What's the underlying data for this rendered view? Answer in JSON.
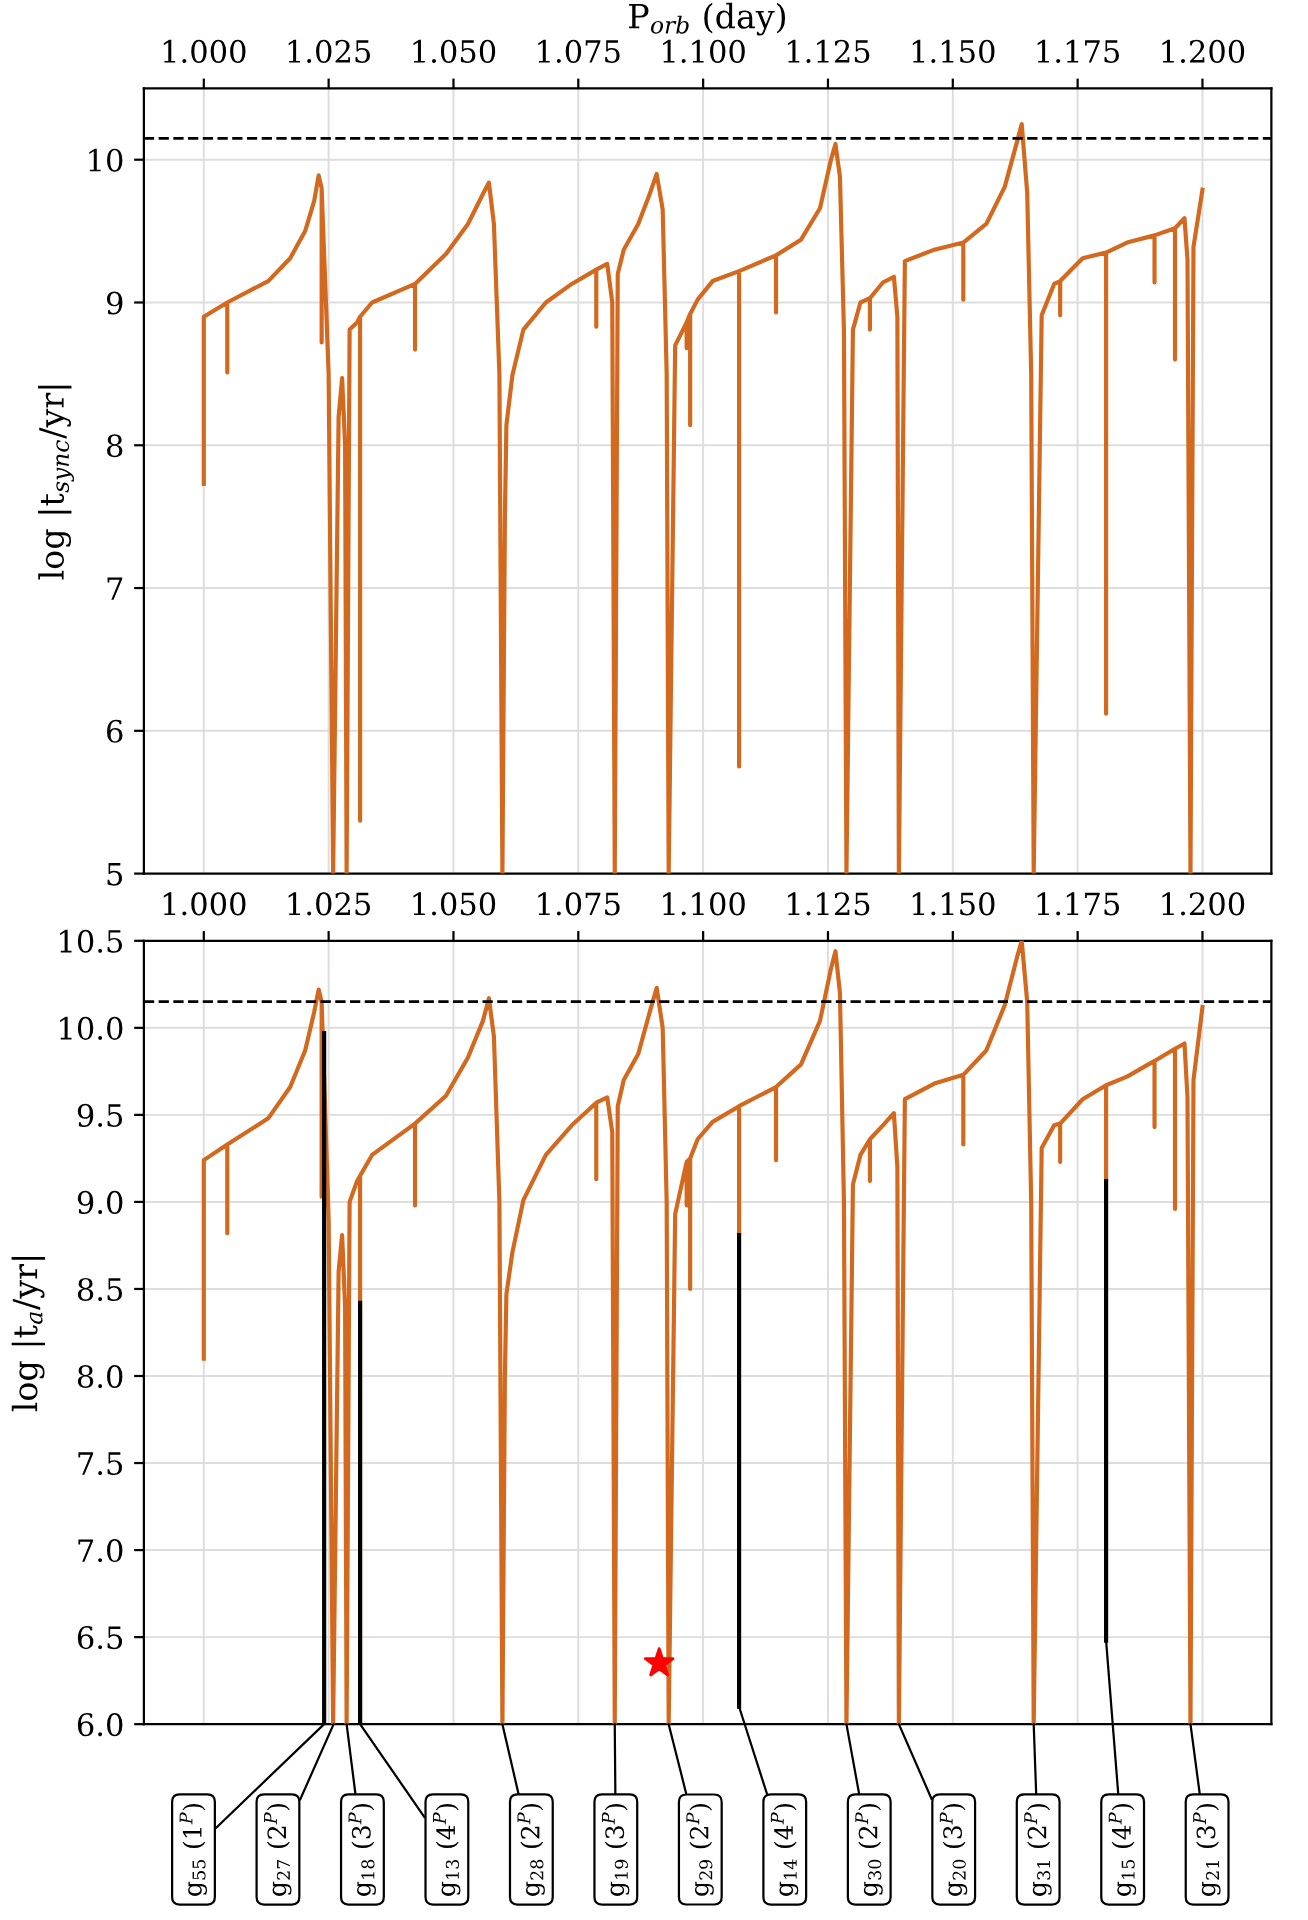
{
  "chart_data": [
    {
      "type": "line",
      "xlabel": "P$_{orb}$ (day)",
      "ylabel": "log |t$_{sync}$/yr|",
      "xlim": [
        0.988,
        1.2138
      ],
      "ylim": [
        5,
        10.5
      ],
      "xticks": [
        {
          "value": 1.0,
          "label": "1.000"
        },
        {
          "value": 1.025,
          "label": "1.025"
        },
        {
          "value": 1.05,
          "label": "1.050"
        },
        {
          "value": 1.075,
          "label": "1.075"
        },
        {
          "value": 1.1,
          "label": "1.100"
        },
        {
          "value": 1.125,
          "label": "1.125"
        },
        {
          "value": 1.15,
          "label": "1.150"
        },
        {
          "value": 1.175,
          "label": "1.175"
        },
        {
          "value": 1.2,
          "label": "1.200"
        }
      ],
      "yticks": [
        5,
        6,
        7,
        8,
        9,
        10
      ],
      "grid": true,
      "ref_lines": [
        {
          "axis": "y",
          "value": 10.15,
          "color": "#000000",
          "line_style": "dashed"
        }
      ],
      "series": [
        {
          "color": "#d2691e",
          "x": [
            1.0,
            1.0,
            1.0047,
            1.0047,
            1.0047,
            1.0129,
            1.0173,
            1.0203,
            1.0221,
            1.023,
            1.0236,
            1.0236,
            1.0236,
            1.025,
            1.0259,
            1.027,
            1.0277,
            1.0283,
            1.0286,
            1.0292,
            1.0307,
            1.0313,
            1.0313,
            1.0313,
            1.0337,
            1.0423,
            1.0423,
            1.0423,
            1.0485,
            1.0529,
            1.0559,
            1.0571,
            1.0581,
            1.0592,
            1.0598,
            1.0603,
            1.0606,
            1.0618,
            1.064,
            1.0685,
            1.0737,
            1.0786,
            1.0786,
            1.0786,
            1.0808,
            1.0818,
            1.0823,
            1.0829,
            1.0841,
            1.087,
            1.0893,
            1.0907,
            1.0919,
            1.0927,
            1.0931,
            1.0944,
            1.0967,
            1.0967,
            1.0967,
            1.0974,
            1.0974,
            1.0974,
            1.0989,
            1.1019,
            1.1072,
            1.1072,
            1.1072,
            1.1146,
            1.1146,
            1.1146,
            1.1196,
            1.1234,
            1.1256,
            1.1265,
            1.1274,
            1.1282,
            1.1287,
            1.13,
            1.1315,
            1.1334,
            1.1334,
            1.1334,
            1.136,
            1.1382,
            1.1389,
            1.1392,
            1.1404,
            1.1463,
            1.1521,
            1.1521,
            1.1521,
            1.1567,
            1.1604,
            1.1629,
            1.1638,
            1.1649,
            1.1657,
            1.1662,
            1.1678,
            1.1703,
            1.1715,
            1.1715,
            1.1715,
            1.176,
            1.1807,
            1.1807,
            1.1807,
            1.1849,
            1.1904,
            1.1904,
            1.1904,
            1.1945,
            1.1945,
            1.1945,
            1.1964,
            1.197,
            1.1976,
            1.1982,
            1.2
          ],
          "values": [
            7.73,
            8.9,
            9.0,
            8.51,
            9.0,
            9.15,
            9.31,
            9.5,
            9.71,
            9.89,
            9.8,
            8.72,
            9.8,
            8.5,
            5,
            8.2,
            8.47,
            8.0,
            5,
            8.81,
            8.86,
            8.9,
            5.37,
            8.9,
            9.0,
            9.13,
            8.67,
            9.13,
            9.34,
            9.55,
            9.76,
            9.84,
            9.55,
            8.5,
            5,
            7.5,
            8.14,
            8.49,
            8.81,
            9.0,
            9.13,
            9.23,
            8.83,
            9.23,
            9.27,
            9.0,
            5,
            9.2,
            9.37,
            9.55,
            9.76,
            9.9,
            9.65,
            8.5,
            5,
            8.7,
            8.86,
            8.68,
            8.86,
            8.92,
            8.14,
            8.92,
            9.02,
            9.15,
            9.22,
            5.75,
            9.22,
            9.33,
            8.93,
            9.33,
            9.44,
            9.66,
            10.0,
            10.11,
            9.88,
            8.8,
            5,
            8.81,
            9.0,
            9.03,
            8.81,
            9.03,
            9.14,
            9.18,
            8.9,
            5,
            9.29,
            9.37,
            9.42,
            9.02,
            9.42,
            9.55,
            9.81,
            10.13,
            10.25,
            9.77,
            8.5,
            5,
            8.91,
            9.13,
            9.15,
            8.91,
            9.15,
            9.31,
            9.35,
            6.12,
            9.35,
            9.42,
            9.47,
            9.14,
            9.47,
            9.52,
            8.6,
            9.52,
            9.59,
            9.3,
            5,
            9.39,
            9.79
          ]
        }
      ]
    },
    {
      "type": "line",
      "ylabel": "log |t$_{a}$/yr|",
      "xlim": [
        0.988,
        1.2138
      ],
      "ylim": [
        6,
        10.5
      ],
      "xticks": [
        {
          "value": 1.0,
          "label": "1.000"
        },
        {
          "value": 1.025,
          "label": "1.025"
        },
        {
          "value": 1.05,
          "label": "1.050"
        },
        {
          "value": 1.075,
          "label": "1.075"
        },
        {
          "value": 1.1,
          "label": "1.100"
        },
        {
          "value": 1.125,
          "label": "1.125"
        },
        {
          "value": 1.15,
          "label": "1.150"
        },
        {
          "value": 1.175,
          "label": "1.175"
        },
        {
          "value": 1.2,
          "label": "1.200"
        }
      ],
      "yticks": [
        {
          "value": 6,
          "label": "6.0"
        },
        {
          "value": 6.5,
          "label": "6.5"
        },
        {
          "value": 7,
          "label": "7.0"
        },
        {
          "value": 7.5,
          "label": "7.5"
        },
        {
          "value": 8,
          "label": "8.0"
        },
        {
          "value": 8.5,
          "label": "8.5"
        },
        {
          "value": 9,
          "label": "9.0"
        },
        {
          "value": 9.5,
          "label": "9.5"
        },
        {
          "value": 10,
          "label": "10.0"
        },
        {
          "value": 10.5,
          "label": "10.5"
        }
      ],
      "grid": true,
      "ref_lines": [
        {
          "axis": "y",
          "value": 10.15,
          "color": "#000000",
          "line_style": "dashed"
        }
      ],
      "annotations": [
        {
          "text": "g$_{55}$ (1$^{P}$)",
          "x": 1.0241,
          "y": 6.0
        },
        {
          "text": "g$_{27}$ (2$^{P}$)",
          "x": 1.026,
          "y": 6.0
        },
        {
          "text": "g$_{18}$ (3$^{P}$)",
          "x": 1.0286,
          "y": 6.0
        },
        {
          "text": "g$_{13}$ (4$^{P}$)",
          "x": 1.0313,
          "y": 6.0
        },
        {
          "text": "g$_{28}$ (2$^{P}$)",
          "x": 1.0598,
          "y": 6.0
        },
        {
          "text": "g$_{19}$ (3$^{P}$)",
          "x": 1.0823,
          "y": 6.0
        },
        {
          "text": "g$_{29}$ (2$^{P}$)",
          "x": 1.0931,
          "y": 6.0
        },
        {
          "text": "g$_{14}$ (4$^{P}$)",
          "x": 1.1072,
          "y": 6.1
        },
        {
          "text": "g$_{30}$ (2$^{P}$)",
          "x": 1.1287,
          "y": 6.0
        },
        {
          "text": "g$_{20}$ (3$^{P}$)",
          "x": 1.1392,
          "y": 6.0
        },
        {
          "text": "g$_{31}$ (2$^{P}$)",
          "x": 1.1662,
          "y": 6.0
        },
        {
          "text": "g$_{15}$ (4$^{P}$)",
          "x": 1.1807,
          "y": 6.48
        },
        {
          "text": "g$_{21}$ (3$^{P}$)",
          "x": 1.1976,
          "y": 6.0
        }
      ],
      "series": [
        {
          "color": "#d2691e",
          "x": [
            1.0,
            1.0,
            1.0047,
            1.0047,
            1.0047,
            1.0129,
            1.0173,
            1.0203,
            1.0221,
            1.023,
            1.0236,
            1.0236,
            1.0236,
            1.025,
            1.0259,
            1.027,
            1.0277,
            1.0283,
            1.0286,
            1.0292,
            1.0307,
            1.0313,
            1.0313,
            1.0313,
            1.0337,
            1.0423,
            1.0423,
            1.0423,
            1.0485,
            1.0529,
            1.0559,
            1.0571,
            1.0581,
            1.0592,
            1.0598,
            1.0603,
            1.0606,
            1.0618,
            1.064,
            1.0685,
            1.0737,
            1.0786,
            1.0786,
            1.0786,
            1.0808,
            1.0818,
            1.0823,
            1.0829,
            1.0841,
            1.087,
            1.0893,
            1.0907,
            1.0919,
            1.0927,
            1.0931,
            1.0944,
            1.0967,
            1.0967,
            1.0967,
            1.0974,
            1.0974,
            1.0974,
            1.0989,
            1.1019,
            1.1072,
            1.1072,
            1.1072,
            1.1146,
            1.1146,
            1.1146,
            1.1196,
            1.1234,
            1.1256,
            1.1265,
            1.1274,
            1.1282,
            1.1287,
            1.13,
            1.1315,
            1.1334,
            1.1334,
            1.1334,
            1.136,
            1.1382,
            1.1389,
            1.1392,
            1.1404,
            1.1463,
            1.1521,
            1.1521,
            1.1521,
            1.1567,
            1.1604,
            1.1629,
            1.1638,
            1.1649,
            1.1657,
            1.1662,
            1.1678,
            1.1703,
            1.1715,
            1.1715,
            1.1715,
            1.176,
            1.1807,
            1.1807,
            1.1807,
            1.1849,
            1.1904,
            1.1904,
            1.1904,
            1.1945,
            1.1945,
            1.1945,
            1.1964,
            1.197,
            1.1976,
            1.1982,
            1.2
          ],
          "values": [
            8.1,
            9.24,
            9.33,
            8.82,
            9.33,
            9.48,
            9.66,
            9.87,
            10.09,
            10.22,
            10.15,
            9.03,
            10.15,
            8.9,
            6,
            8.6,
            8.81,
            8.4,
            6,
            9.0,
            9.12,
            9.15,
            6,
            9.15,
            9.27,
            9.45,
            8.98,
            9.45,
            9.61,
            9.83,
            10.04,
            10.17,
            9.95,
            9.0,
            6,
            8.0,
            8.47,
            8.71,
            9.01,
            9.27,
            9.44,
            9.57,
            9.13,
            9.57,
            9.6,
            9.4,
            6,
            9.55,
            9.7,
            9.85,
            10.09,
            10.23,
            10.0,
            9.0,
            6,
            8.93,
            9.23,
            8.98,
            9.23,
            9.25,
            8.5,
            9.25,
            9.36,
            9.46,
            9.55,
            8.81,
            9.55,
            9.66,
            9.24,
            9.66,
            9.79,
            10.04,
            10.34,
            10.44,
            10.2,
            9.0,
            6,
            9.1,
            9.27,
            9.36,
            9.12,
            9.36,
            9.44,
            9.51,
            9.2,
            6,
            9.59,
            9.68,
            9.73,
            9.33,
            9.73,
            9.87,
            10.13,
            10.41,
            10.5,
            10.15,
            9.0,
            6,
            9.31,
            9.44,
            9.45,
            9.23,
            9.45,
            9.59,
            9.67,
            9.12,
            9.67,
            9.72,
            9.81,
            9.43,
            9.81,
            9.88,
            8.96,
            9.88,
            9.91,
            9.6,
            6,
            9.7,
            10.12
          ]
        },
        {
          "color": "#000000",
          "x": [
            1.0241,
            1.0241
          ],
          "values": [
            9.97,
            6.0
          ]
        },
        {
          "color": "#000000",
          "x": [
            1.0313,
            1.0313
          ],
          "values": [
            8.42,
            6.0
          ]
        },
        {
          "color": "#000000",
          "x": [
            1.1072,
            1.1072
          ],
          "values": [
            8.81,
            6.1
          ]
        },
        {
          "color": "#000000",
          "x": [
            1.1807,
            1.1807
          ],
          "values": [
            9.12,
            6.48
          ]
        },
        {
          "type": "scatter",
          "color": "#ff0000",
          "marker": "star",
          "x": [
            1.0912
          ],
          "values": [
            6.35
          ]
        }
      ]
    }
  ]
}
